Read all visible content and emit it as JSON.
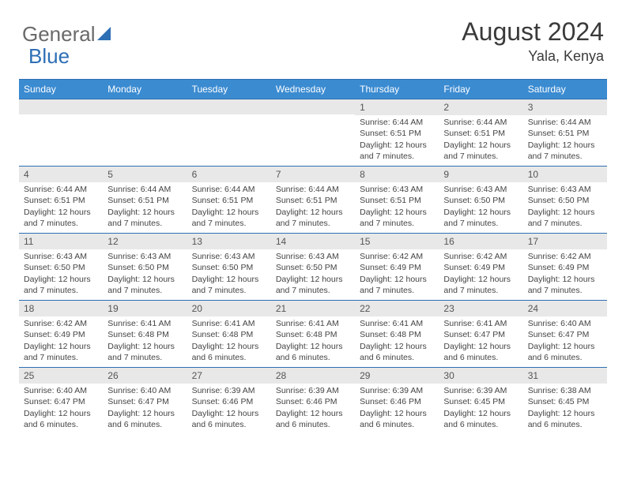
{
  "brand": {
    "word1": "General",
    "word2": "Blue",
    "logo_color": "#2d6fb5",
    "gray": "#6a6a6a"
  },
  "title": "August 2024",
  "location": "Yala, Kenya",
  "colors": {
    "header_bg": "#3b8bd1",
    "header_text": "#ffffff",
    "row_border": "#2d6fb5",
    "daynum_bg": "#e8e8e8",
    "text": "#444444",
    "page_bg": "#ffffff"
  },
  "day_names": [
    "Sunday",
    "Monday",
    "Tuesday",
    "Wednesday",
    "Thursday",
    "Friday",
    "Saturday"
  ],
  "weeks": [
    [
      null,
      null,
      null,
      null,
      {
        "n": "1",
        "sr": "6:44 AM",
        "ss": "6:51 PM",
        "dl": "12 hours and 7 minutes."
      },
      {
        "n": "2",
        "sr": "6:44 AM",
        "ss": "6:51 PM",
        "dl": "12 hours and 7 minutes."
      },
      {
        "n": "3",
        "sr": "6:44 AM",
        "ss": "6:51 PM",
        "dl": "12 hours and 7 minutes."
      }
    ],
    [
      {
        "n": "4",
        "sr": "6:44 AM",
        "ss": "6:51 PM",
        "dl": "12 hours and 7 minutes."
      },
      {
        "n": "5",
        "sr": "6:44 AM",
        "ss": "6:51 PM",
        "dl": "12 hours and 7 minutes."
      },
      {
        "n": "6",
        "sr": "6:44 AM",
        "ss": "6:51 PM",
        "dl": "12 hours and 7 minutes."
      },
      {
        "n": "7",
        "sr": "6:44 AM",
        "ss": "6:51 PM",
        "dl": "12 hours and 7 minutes."
      },
      {
        "n": "8",
        "sr": "6:43 AM",
        "ss": "6:51 PM",
        "dl": "12 hours and 7 minutes."
      },
      {
        "n": "9",
        "sr": "6:43 AM",
        "ss": "6:50 PM",
        "dl": "12 hours and 7 minutes."
      },
      {
        "n": "10",
        "sr": "6:43 AM",
        "ss": "6:50 PM",
        "dl": "12 hours and 7 minutes."
      }
    ],
    [
      {
        "n": "11",
        "sr": "6:43 AM",
        "ss": "6:50 PM",
        "dl": "12 hours and 7 minutes."
      },
      {
        "n": "12",
        "sr": "6:43 AM",
        "ss": "6:50 PM",
        "dl": "12 hours and 7 minutes."
      },
      {
        "n": "13",
        "sr": "6:43 AM",
        "ss": "6:50 PM",
        "dl": "12 hours and 7 minutes."
      },
      {
        "n": "14",
        "sr": "6:43 AM",
        "ss": "6:50 PM",
        "dl": "12 hours and 7 minutes."
      },
      {
        "n": "15",
        "sr": "6:42 AM",
        "ss": "6:49 PM",
        "dl": "12 hours and 7 minutes."
      },
      {
        "n": "16",
        "sr": "6:42 AM",
        "ss": "6:49 PM",
        "dl": "12 hours and 7 minutes."
      },
      {
        "n": "17",
        "sr": "6:42 AM",
        "ss": "6:49 PM",
        "dl": "12 hours and 7 minutes."
      }
    ],
    [
      {
        "n": "18",
        "sr": "6:42 AM",
        "ss": "6:49 PM",
        "dl": "12 hours and 7 minutes."
      },
      {
        "n": "19",
        "sr": "6:41 AM",
        "ss": "6:48 PM",
        "dl": "12 hours and 7 minutes."
      },
      {
        "n": "20",
        "sr": "6:41 AM",
        "ss": "6:48 PM",
        "dl": "12 hours and 6 minutes."
      },
      {
        "n": "21",
        "sr": "6:41 AM",
        "ss": "6:48 PM",
        "dl": "12 hours and 6 minutes."
      },
      {
        "n": "22",
        "sr": "6:41 AM",
        "ss": "6:48 PM",
        "dl": "12 hours and 6 minutes."
      },
      {
        "n": "23",
        "sr": "6:41 AM",
        "ss": "6:47 PM",
        "dl": "12 hours and 6 minutes."
      },
      {
        "n": "24",
        "sr": "6:40 AM",
        "ss": "6:47 PM",
        "dl": "12 hours and 6 minutes."
      }
    ],
    [
      {
        "n": "25",
        "sr": "6:40 AM",
        "ss": "6:47 PM",
        "dl": "12 hours and 6 minutes."
      },
      {
        "n": "26",
        "sr": "6:40 AM",
        "ss": "6:47 PM",
        "dl": "12 hours and 6 minutes."
      },
      {
        "n": "27",
        "sr": "6:39 AM",
        "ss": "6:46 PM",
        "dl": "12 hours and 6 minutes."
      },
      {
        "n": "28",
        "sr": "6:39 AM",
        "ss": "6:46 PM",
        "dl": "12 hours and 6 minutes."
      },
      {
        "n": "29",
        "sr": "6:39 AM",
        "ss": "6:46 PM",
        "dl": "12 hours and 6 minutes."
      },
      {
        "n": "30",
        "sr": "6:39 AM",
        "ss": "6:45 PM",
        "dl": "12 hours and 6 minutes."
      },
      {
        "n": "31",
        "sr": "6:38 AM",
        "ss": "6:45 PM",
        "dl": "12 hours and 6 minutes."
      }
    ]
  ],
  "labels": {
    "sunrise": "Sunrise:",
    "sunset": "Sunset:",
    "daylight": "Daylight:"
  }
}
